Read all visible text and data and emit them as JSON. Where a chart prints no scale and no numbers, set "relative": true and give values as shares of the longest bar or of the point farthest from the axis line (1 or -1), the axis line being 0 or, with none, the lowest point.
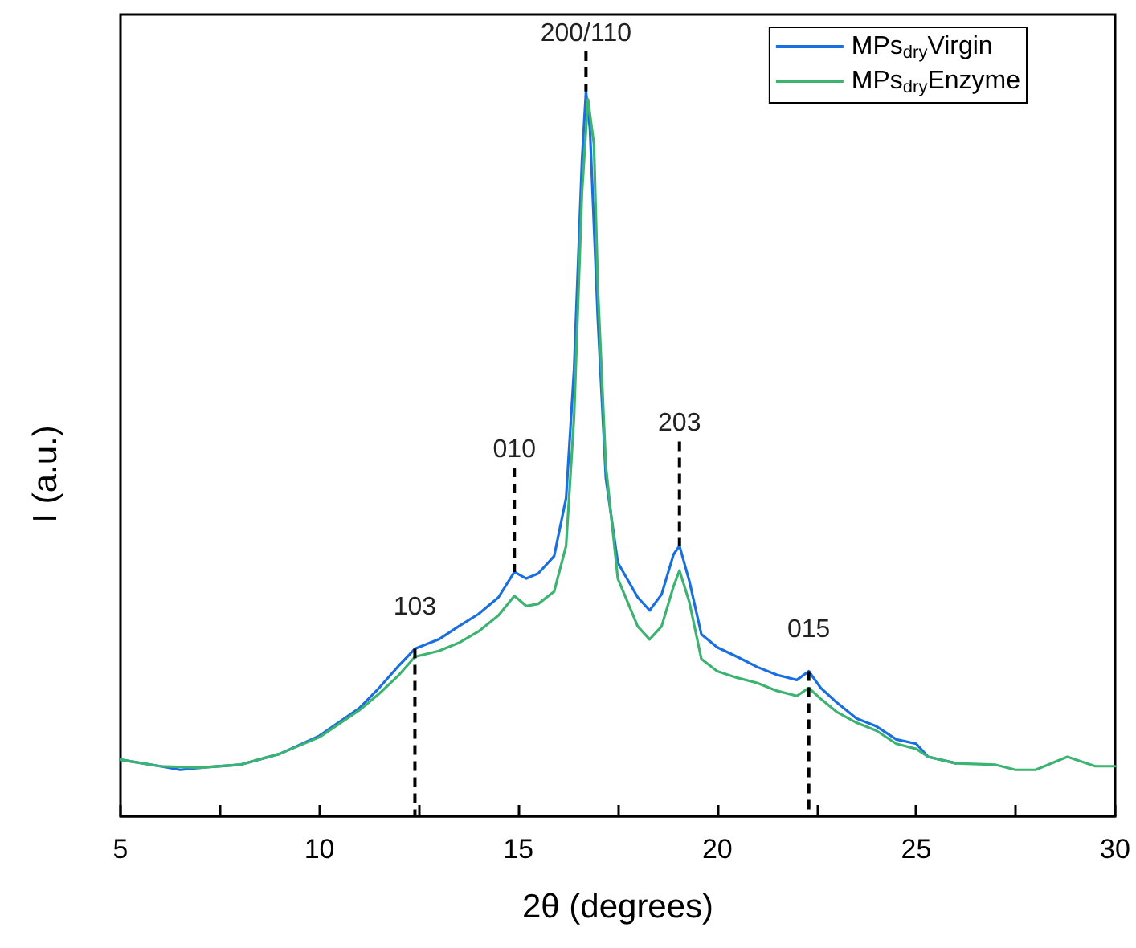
{
  "chart_data": {
    "type": "line",
    "relative": true,
    "xlabel": "2θ (degrees)",
    "ylabel": "I (a.u.)",
    "xlim": [
      5,
      30
    ],
    "xticks": [
      5,
      {
        "value": 7.5,
        "label": null
      },
      10,
      {
        "value": 12.5,
        "label": null
      },
      15,
      {
        "value": 17.5,
        "label": null
      },
      20,
      {
        "value": 22.5,
        "label": null
      },
      25,
      {
        "value": 27.5,
        "label": null
      },
      30
    ],
    "legend": "top right",
    "grid": false,
    "marker": "none",
    "line_style": "solid",
    "annotations": [
      {
        "text": "103",
        "x": 12.4,
        "y": 0.231
      },
      {
        "text": "010",
        "x": 14.9,
        "y": 0.337
      },
      {
        "text": "200/110",
        "x": 16.7,
        "y": 1
      },
      {
        "text": "203",
        "x": 19.05,
        "y": 0.373
      },
      {
        "text": "015",
        "x": 22.3,
        "y": 0.2
      }
    ],
    "series": [
      {
        "name": "MPs$_{dry}$Virgin",
        "color": "#1a6fdf",
        "x": [
          5,
          6,
          6.5,
          7,
          8,
          9,
          10,
          11,
          11.5,
          12,
          12.4,
          13,
          13.5,
          14,
          14.5,
          14.9,
          15.2,
          15.5,
          15.9,
          16.2,
          16.4,
          16.6,
          16.7,
          16.8,
          17.0,
          17.2,
          17.5,
          18,
          18.3,
          18.6,
          18.9,
          19.05,
          19.3,
          19.6,
          20,
          20.5,
          21,
          21.5,
          22,
          22.3,
          22.6,
          23,
          23.5,
          24,
          24.5,
          25,
          25.3,
          26
        ],
        "values": [
          0.078,
          0.069,
          0.064,
          0.067,
          0.071,
          0.086,
          0.111,
          0.149,
          0.177,
          0.208,
          0.231,
          0.244,
          0.262,
          0.279,
          0.302,
          0.337,
          0.328,
          0.335,
          0.359,
          0.439,
          0.616,
          0.905,
          1,
          0.948,
          0.683,
          0.466,
          0.35,
          0.302,
          0.284,
          0.306,
          0.361,
          0.373,
          0.324,
          0.251,
          0.233,
          0.22,
          0.206,
          0.195,
          0.188,
          0.2,
          0.177,
          0.157,
          0.135,
          0.124,
          0.106,
          0.1,
          0.082,
          0.073
        ]
      },
      {
        "name": "MPs$_{dry}$Enzyme",
        "color": "#3cb371",
        "x": [
          5,
          6,
          7,
          8,
          9,
          10,
          11,
          11.5,
          12,
          12.4,
          13,
          13.5,
          14,
          14.5,
          14.9,
          15.2,
          15.5,
          15.9,
          16.2,
          16.4,
          16.6,
          16.75,
          16.9,
          17.0,
          17.2,
          17.5,
          18,
          18.3,
          18.6,
          18.9,
          19.05,
          19.3,
          19.6,
          20,
          20.5,
          21,
          21.5,
          22,
          22.3,
          22.6,
          23,
          23.5,
          24,
          24.5,
          25,
          25.3,
          26,
          27,
          27.5,
          28,
          28.8,
          29.5,
          30
        ],
        "values": [
          0.078,
          0.069,
          0.067,
          0.071,
          0.086,
          0.109,
          0.146,
          0.169,
          0.195,
          0.22,
          0.228,
          0.239,
          0.255,
          0.277,
          0.304,
          0.29,
          0.293,
          0.31,
          0.373,
          0.55,
          0.86,
          0.989,
          0.927,
          0.727,
          0.483,
          0.328,
          0.262,
          0.244,
          0.262,
          0.317,
          0.339,
          0.295,
          0.217,
          0.2,
          0.191,
          0.184,
          0.173,
          0.166,
          0.177,
          0.162,
          0.144,
          0.129,
          0.118,
          0.1,
          0.093,
          0.082,
          0.073,
          0.071,
          0.064,
          0.064,
          0.082,
          0.069,
          0.069
        ]
      }
    ]
  }
}
